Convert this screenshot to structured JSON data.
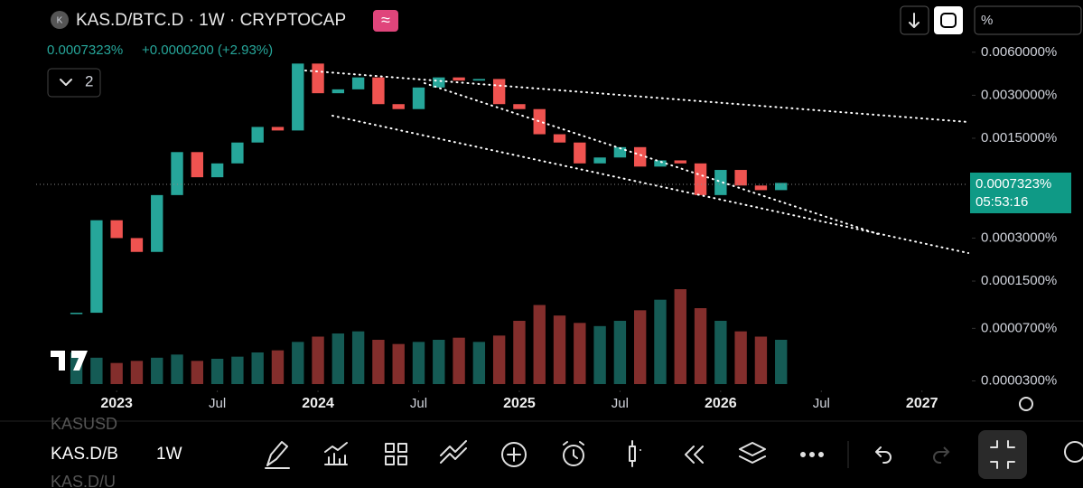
{
  "header": {
    "symbol": "KAS.D/BTC.D · 1W · CRYPTOCAP",
    "last": "0.0007323%",
    "change": "+0.0000200 (+2.93%)",
    "indicators": "2",
    "scale_button": "%"
  },
  "chart_data": {
    "type": "candlestick",
    "log_scale": true,
    "x": [
      2022.8,
      2022.9,
      2023.0,
      2023.1,
      2023.2,
      2023.3,
      2023.4,
      2023.5,
      2023.6,
      2023.7,
      2023.8,
      2023.9,
      2024.0,
      2024.1,
      2024.2,
      2024.3,
      2024.4,
      2024.5,
      2024.6,
      2024.7,
      2024.8,
      2024.9,
      2025.0,
      2025.1,
      2025.2,
      2025.3,
      2025.4,
      2025.5,
      2025.6,
      2025.7,
      2025.8,
      2025.9,
      2026.0,
      2026.1,
      2026.2,
      2026.3
    ],
    "values": [
      9e-05,
      0.0004,
      0.0003,
      0.00024,
      0.0006,
      0.0012,
      0.0008,
      0.001,
      0.0014,
      0.0018,
      0.0017,
      0.005,
      0.0031,
      0.0033,
      0.004,
      0.0026,
      0.0024,
      0.0034,
      0.004,
      0.0038,
      0.0039,
      0.0026,
      0.0024,
      0.0016,
      0.0014,
      0.001,
      0.0011,
      0.0013,
      0.00095,
      0.00105,
      0.001,
      0.0006,
      0.0009,
      0.0007,
      0.00065,
      0.00073
    ],
    "volumes": [
      30,
      25,
      20,
      22,
      25,
      28,
      22,
      24,
      26,
      30,
      32,
      40,
      45,
      48,
      50,
      42,
      38,
      40,
      42,
      44,
      40,
      46,
      60,
      75,
      65,
      58,
      55,
      60,
      70,
      80,
      90,
      72,
      60,
      50,
      45,
      42
    ],
    "ylim": [
      2.65e-05,
      0.009
    ],
    "yticks": [
      {
        "value": 0.006,
        "label": "0.0060000%"
      },
      {
        "value": 0.003,
        "label": "0.0030000%"
      },
      {
        "value": 0.0015,
        "label": "0.0015000%"
      },
      {
        "value": 0.0003,
        "label": "0.0003000%"
      },
      {
        "value": 0.00015,
        "label": "0.0001500%"
      },
      {
        "value": 7e-05,
        "label": "0.0000700%"
      },
      {
        "value": 3e-05,
        "label": "0.0000300%"
      }
    ],
    "xlim": [
      2022.6,
      2027.23
    ],
    "xticks": [
      2023,
      {
        "value": 2023.5,
        "label": "Jul"
      },
      2024,
      {
        "value": 2024.5,
        "label": "Jul"
      },
      2025,
      {
        "value": 2025.5,
        "label": "Jul"
      },
      2026,
      {
        "value": 2026.5,
        "label": "Jul"
      },
      2027
    ],
    "price_label": "0.0007323%",
    "countdown": "05:53:16",
    "colors": {
      "up": "#26a69a",
      "down": "#ef5350"
    }
  },
  "toolbar": {
    "prev_symbol": "KASUSD",
    "symbol": "KAS.D/B",
    "next_symbol": "KAS.D/U",
    "interval": "1W"
  }
}
